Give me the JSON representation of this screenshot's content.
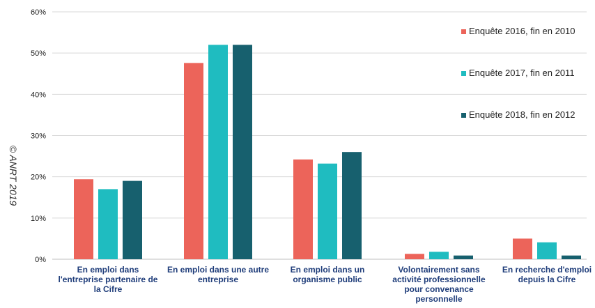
{
  "watermark": "© ANRT 2019",
  "chart_data": {
    "type": "bar",
    "categories": [
      [
        "En emploi dans",
        "l'entreprise partenaire de",
        "la Cifre"
      ],
      [
        "En emploi dans une autre",
        "entreprise"
      ],
      [
        "En emploi dans un",
        "organisme public"
      ],
      [
        "Volontairement sans",
        "activité professionnelle",
        "pour convenance",
        "personnelle"
      ],
      [
        "En recherche d'emploi",
        "depuis la Cifre"
      ]
    ],
    "series": [
      {
        "name": "Enquête 2016, fin en 2010",
        "color": "#ec645a",
        "values": [
          19.4,
          47.6,
          24.2,
          1.3,
          5.0
        ]
      },
      {
        "name": "Enquête 2017, fin en 2011",
        "color": "#1fbcc0",
        "values": [
          17.0,
          52.0,
          23.2,
          1.8,
          4.1
        ]
      },
      {
        "name": "Enquête 2018, fin en 2012",
        "color": "#17606e",
        "values": [
          19.0,
          52.0,
          26.0,
          0.9,
          0.9
        ]
      }
    ],
    "ylim": [
      0,
      60
    ],
    "yticks": [
      0,
      10,
      20,
      30,
      40,
      50,
      60
    ],
    "ytick_labels": [
      "0%",
      "10%",
      "20%",
      "30%",
      "40%",
      "50%",
      "60%"
    ],
    "grid": true,
    "legend_position": "top-right",
    "title": "",
    "xlabel": "",
    "ylabel": ""
  }
}
